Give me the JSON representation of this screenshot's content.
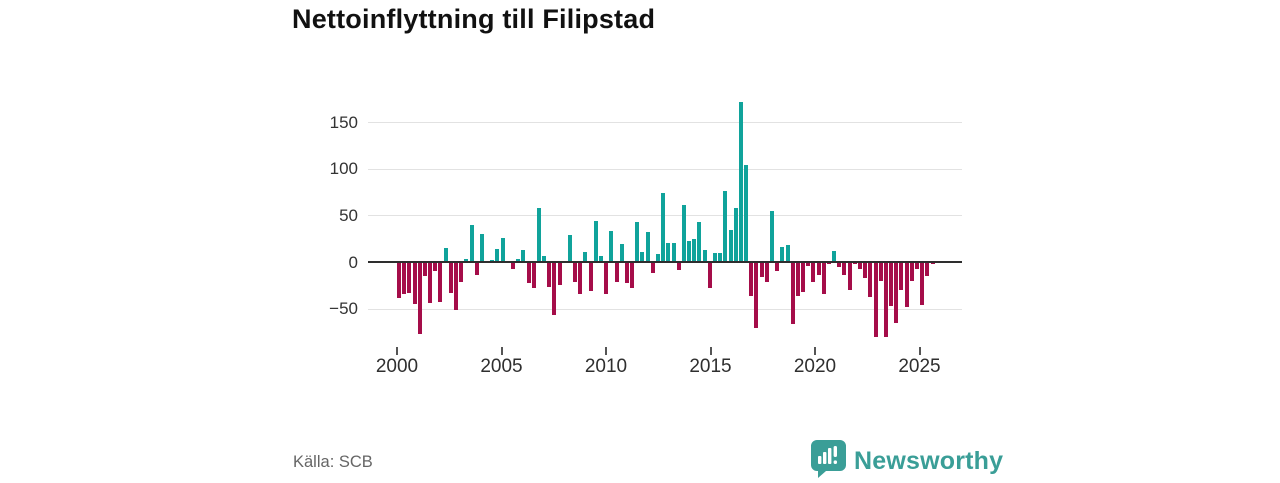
{
  "title": "Nettoinflyttning till Filipstad",
  "source": "Källa: SCB",
  "brand": {
    "name": "Newsworthy",
    "color": "#3a9e97"
  },
  "chart_data": {
    "type": "bar",
    "title": "Nettoinflyttning till Filipstad",
    "start_period": "2000 Q1",
    "frequency": "quarterly",
    "values": [
      -39,
      -34,
      -33,
      -45,
      -77,
      -15,
      -44,
      -10,
      -43,
      15,
      -33,
      -52,
      -21,
      3,
      40,
      -14,
      30,
      1,
      2,
      14,
      26,
      1,
      -8,
      3,
      13,
      -22,
      -28,
      58,
      6,
      -27,
      -57,
      -25,
      0,
      29,
      -21,
      -34,
      11,
      -31,
      44,
      6,
      -34,
      33,
      -21,
      19,
      -23,
      -28,
      43,
      11,
      32,
      -12,
      9,
      74,
      20,
      20,
      -9,
      61,
      22,
      25,
      43,
      13,
      -28,
      10,
      10,
      76,
      34,
      58,
      172,
      104,
      -37,
      -71,
      -16,
      -21,
      55,
      -10,
      16,
      18,
      -66,
      -37,
      -32,
      -4,
      -21,
      -14,
      -34,
      -2,
      12,
      -5,
      -14,
      -30,
      -2,
      -7,
      -17,
      -38,
      -80,
      -20,
      -80,
      -47,
      -65,
      -30,
      -48,
      -20,
      -8,
      -46,
      -15,
      -2
    ],
    "x_tick_labels": [
      "2000",
      "2005",
      "2010",
      "2015",
      "2020",
      "2025"
    ],
    "y_ticks": [
      {
        "value": 150,
        "label": "150"
      },
      {
        "value": 100,
        "label": "100"
      },
      {
        "value": 50,
        "label": "50"
      },
      {
        "value": 0,
        "label": "0"
      },
      {
        "value": -50,
        "label": "−50"
      }
    ],
    "ylim": [
      -90,
      180
    ],
    "grid": true,
    "legend": false,
    "positive_color": "#10a39b",
    "negative_color": "#a50d49",
    "axis_color": "#2e2e2e",
    "grid_color": "#e2e2e2"
  }
}
